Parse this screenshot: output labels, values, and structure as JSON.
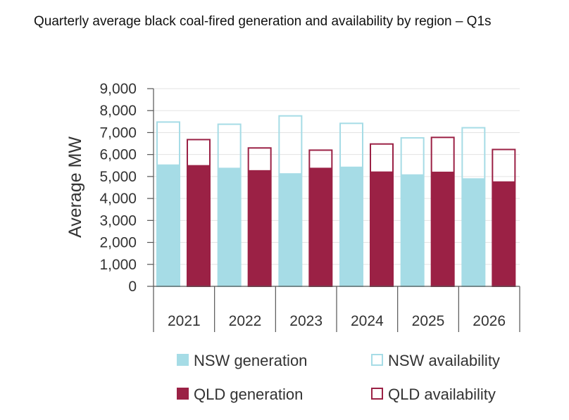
{
  "title": "Quarterly average black coal-fired generation and availability by region – Q1s",
  "chart_data": {
    "type": "bar",
    "title": "Quarterly average black coal-fired generation and availability by region – Q1s",
    "xlabel": "",
    "ylabel": "Average MW",
    "ylim": [
      0,
      9000
    ],
    "yticks": [
      "0",
      "1,000",
      "2,000",
      "3,000",
      "4,000",
      "5,000",
      "6,000",
      "7,000",
      "8,000",
      "9,000"
    ],
    "grid": true,
    "legend_position": "bottom",
    "categories": [
      "2021",
      "2022",
      "2023",
      "2024",
      "2025",
      "2026"
    ],
    "series": [
      {
        "name": "NSW generation",
        "values": [
          5550,
          5400,
          5150,
          5450,
          5100,
          4920
        ],
        "color": "#a6dce6",
        "style": "filled"
      },
      {
        "name": "NSW availability",
        "values": [
          7480,
          7380,
          7760,
          7420,
          6760,
          7220
        ],
        "color": "#a6dce6",
        "style": "outline"
      },
      {
        "name": "QLD generation",
        "values": [
          5520,
          5290,
          5400,
          5230,
          5220,
          4780
        ],
        "color": "#9b2145",
        "style": "filled"
      },
      {
        "name": "QLD availability",
        "values": [
          6680,
          6300,
          6200,
          6480,
          6780,
          6230
        ],
        "color": "#9b2145",
        "style": "outline"
      }
    ]
  }
}
